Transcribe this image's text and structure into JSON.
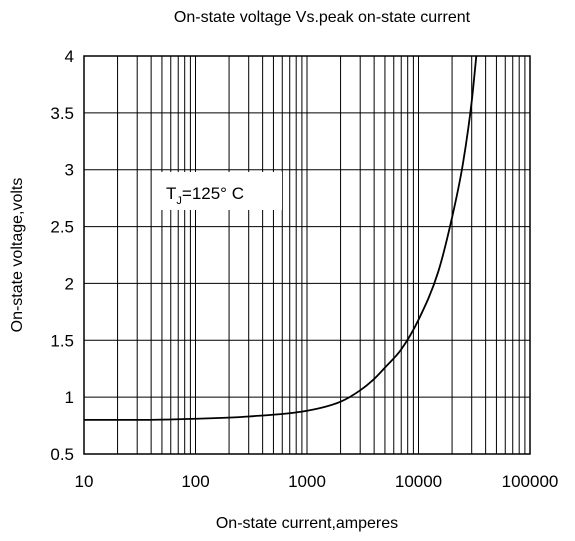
{
  "chart_data": {
    "type": "line",
    "title": "On-state voltage Vs.peak on-state current",
    "xlabel": "On-state current,amperes",
    "ylabel": "On-state voltage,volts",
    "xscale": "log",
    "xlim": [
      10,
      100000
    ],
    "ylim": [
      0.5,
      4
    ],
    "grid": true,
    "xticks": [
      10,
      100,
      1000,
      10000,
      100000
    ],
    "xtick_labels": [
      "10",
      "100",
      "1000",
      "10000",
      "100000"
    ],
    "yticks": [
      0.5,
      1,
      1.5,
      2,
      2.5,
      3,
      3.5,
      4
    ],
    "ytick_labels": [
      "0.5",
      "1",
      "1.5",
      "2",
      "2.5",
      "3",
      "3.5",
      "4"
    ],
    "annotation": {
      "main": "T",
      "subscript": "J",
      "rest": "=125°  C"
    },
    "series": [
      {
        "x": [
          10,
          30,
          100,
          300,
          1000,
          2000,
          3000,
          4000,
          5000,
          7000,
          10000,
          15000,
          20000,
          25000,
          30000,
          33000
        ],
        "y": [
          0.8,
          0.8,
          0.81,
          0.83,
          0.88,
          0.96,
          1.06,
          1.16,
          1.26,
          1.42,
          1.68,
          2.1,
          2.58,
          3.05,
          3.6,
          4.0
        ]
      }
    ]
  }
}
